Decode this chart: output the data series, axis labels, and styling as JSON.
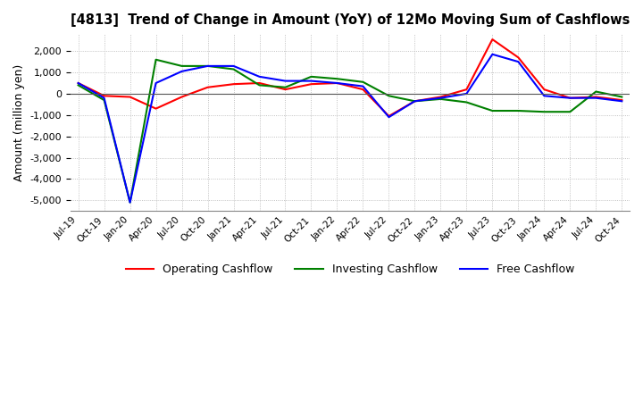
{
  "title": "[4813]  Trend of Change in Amount (YoY) of 12Mo Moving Sum of Cashflows",
  "ylabel": "Amount (million yen)",
  "ylim": [
    -5500,
    2800
  ],
  "yticks": [
    -5000,
    -4000,
    -3000,
    -2000,
    -1000,
    0,
    1000,
    2000
  ],
  "x_labels": [
    "Jul-19",
    "Oct-19",
    "Jan-20",
    "Apr-20",
    "Jul-20",
    "Oct-20",
    "Jan-21",
    "Apr-21",
    "Jul-21",
    "Oct-21",
    "Jan-22",
    "Apr-22",
    "Jul-22",
    "Oct-22",
    "Jan-23",
    "Apr-23",
    "Jul-23",
    "Oct-23",
    "Jan-24",
    "Apr-24",
    "Jul-24",
    "Oct-24"
  ],
  "operating": [
    500,
    -100,
    -150,
    -700,
    -150,
    300,
    450,
    500,
    200,
    450,
    500,
    200,
    -1050,
    -350,
    -150,
    200,
    2550,
    1700,
    200,
    -200,
    -150,
    -300
  ],
  "investing": [
    400,
    -300,
    -5100,
    1600,
    1300,
    1300,
    1150,
    400,
    300,
    800,
    700,
    550,
    -100,
    -350,
    -250,
    -400,
    -800,
    -800,
    -850,
    -850,
    100,
    -150
  ],
  "free": [
    500,
    -200,
    -5100,
    500,
    1050,
    1300,
    1300,
    800,
    600,
    600,
    500,
    350,
    -1100,
    -350,
    -200,
    0,
    1850,
    1500,
    -100,
    -200,
    -200,
    -350
  ],
  "operating_color": "#ff0000",
  "investing_color": "#008000",
  "free_color": "#0000ff",
  "bg_color": "#ffffff",
  "grid_color": "#b0b0b0"
}
